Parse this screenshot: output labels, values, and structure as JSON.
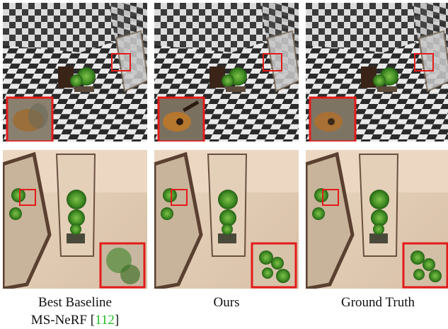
{
  "figure": {
    "columns": [
      {
        "caption_line1": "Best Baseline",
        "caption_line2": "MS-NeRF [",
        "citation": "112",
        "caption_close": "]"
      },
      {
        "caption_line1": "Ours"
      },
      {
        "caption_line1": "Ground Truth"
      }
    ],
    "rows": [
      "checker-room-scene",
      "bonsai-mirror-scene"
    ],
    "colors": {
      "inset_border": "#e31b1b",
      "citation": "#22bb22"
    }
  }
}
